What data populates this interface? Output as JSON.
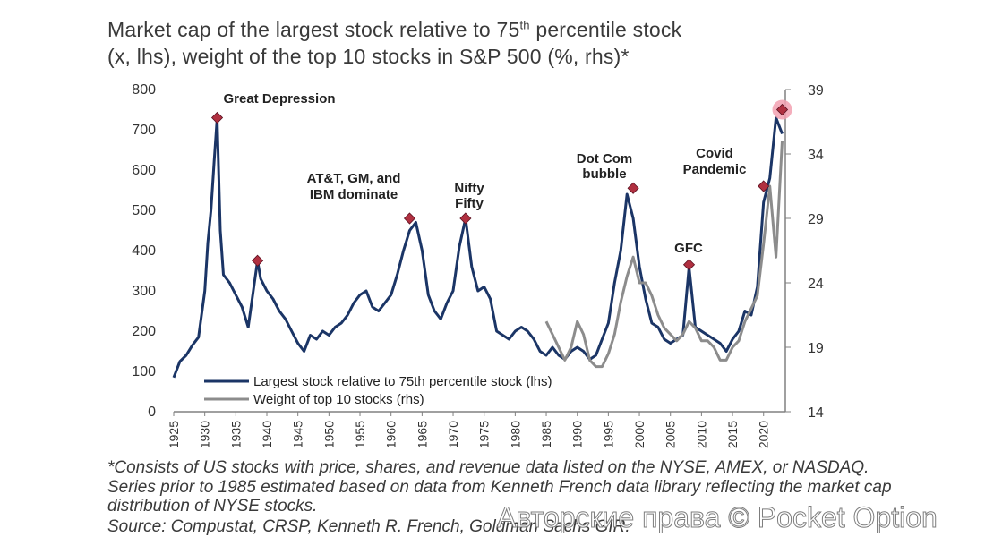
{
  "title": {
    "line1_pre": "Market cap of the largest stock relative to 75",
    "line1_sup": "th",
    "line1_post": " percentile stock",
    "line2": "(x, lhs), weight of the top 10 stocks in S&P 500 (%, rhs)*"
  },
  "footnote": "*Consists of US stocks with price, shares, and revenue data listed on the NYSE, AMEX, or NASDAQ. Series prior to 1985 estimated based on data from Kenneth French data library reflecting the market cap distribution of NYSE stocks.",
  "source": "Source: Compustat, CRSP, Kenneth R. French, Goldman Sachs GIR.",
  "watermark": "Авторские права © Pocket Option",
  "colors": {
    "lhs_series": "#1b3566",
    "rhs_series": "#8c8c8c",
    "marker": "#b03040",
    "highlight": "#f2a0b0",
    "axis": "#808080"
  },
  "chart_data": {
    "type": "line",
    "x_ticks": [
      1925,
      1930,
      1935,
      1940,
      1945,
      1950,
      1955,
      1960,
      1965,
      1970,
      1975,
      1980,
      1985,
      1990,
      1995,
      2000,
      2005,
      2010,
      2015,
      2020
    ],
    "y_left": {
      "ticks": [
        0,
        100,
        200,
        300,
        400,
        500,
        600,
        700,
        800
      ],
      "ylim": [
        0,
        800
      ]
    },
    "y_right": {
      "ticks": [
        14,
        19,
        24,
        29,
        34,
        39
      ],
      "ylim": [
        14,
        39
      ]
    },
    "xlim": [
      1925,
      2023.5
    ],
    "series": [
      {
        "name": "Largest stock relative to 75th percentile stock (lhs)",
        "axis": "left",
        "x": [
          1925,
          1926,
          1927,
          1928,
          1929,
          1930,
          1930.5,
          1931,
          1931.5,
          1932,
          1932.5,
          1933,
          1934,
          1935,
          1936,
          1937,
          1938,
          1938.5,
          1939,
          1940,
          1941,
          1942,
          1943,
          1944,
          1945,
          1946,
          1947,
          1948,
          1949,
          1950,
          1951,
          1952,
          1953,
          1954,
          1955,
          1956,
          1957,
          1958,
          1959,
          1960,
          1961,
          1962,
          1963,
          1964,
          1965,
          1966,
          1967,
          1968,
          1969,
          1970,
          1971,
          1972,
          1973,
          1974,
          1975,
          1976,
          1977,
          1978,
          1979,
          1980,
          1981,
          1982,
          1983,
          1984,
          1985,
          1986,
          1987,
          1988,
          1989,
          1990,
          1991,
          1992,
          1993,
          1994,
          1995,
          1996,
          1997,
          1998,
          1999,
          2000,
          2001,
          2002,
          2003,
          2004,
          2005,
          2006,
          2007,
          2008,
          2009,
          2010,
          2011,
          2012,
          2013,
          2014,
          2015,
          2016,
          2017,
          2018,
          2019,
          2020,
          2021,
          2022,
          2023
        ],
        "y": [
          85,
          125,
          140,
          165,
          185,
          300,
          420,
          500,
          620,
          730,
          450,
          340,
          320,
          290,
          260,
          210,
          320,
          375,
          330,
          300,
          280,
          250,
          230,
          200,
          170,
          150,
          190,
          180,
          200,
          190,
          210,
          220,
          240,
          270,
          290,
          300,
          260,
          250,
          270,
          290,
          340,
          400,
          450,
          470,
          400,
          290,
          250,
          230,
          270,
          300,
          410,
          480,
          360,
          300,
          310,
          280,
          200,
          190,
          180,
          200,
          210,
          200,
          180,
          150,
          140,
          160,
          140,
          130,
          150,
          160,
          150,
          130,
          140,
          180,
          220,
          320,
          400,
          540,
          480,
          360,
          280,
          220,
          210,
          180,
          170,
          180,
          190,
          360,
          210,
          200,
          190,
          180,
          170,
          150,
          180,
          200,
          250,
          240,
          310,
          520,
          580,
          730,
          690
        ]
      },
      {
        "name": "Weight of top 10 stocks (rhs)",
        "axis": "right",
        "x": [
          1985,
          1986,
          1987,
          1988,
          1989,
          1990,
          1991,
          1992,
          1993,
          1994,
          1995,
          1996,
          1997,
          1998,
          1999,
          2000,
          2001,
          2002,
          2003,
          2004,
          2005,
          2006,
          2007,
          2008,
          2009,
          2010,
          2011,
          2012,
          2013,
          2014,
          2015,
          2016,
          2017,
          2018,
          2019,
          2020,
          2021,
          2022,
          2023
        ],
        "y": [
          21,
          20,
          19,
          18,
          19,
          21,
          20,
          18,
          17.5,
          17.5,
          18.5,
          20,
          22.5,
          24.5,
          26,
          24,
          24,
          23,
          21.5,
          20.5,
          20,
          19.5,
          20,
          21,
          20.5,
          19.5,
          19.5,
          19,
          18,
          18,
          19,
          19.5,
          21,
          22,
          23,
          27,
          31.5,
          26,
          35
        ]
      }
    ],
    "annotations": [
      {
        "label": "Great Depression",
        "x": 1932,
        "y": 730
      },
      {
        "label": "AT&T, GM, and",
        "label2": "IBM dominate",
        "x": 1963,
        "y": 480
      },
      {
        "label": "Nifty",
        "label2": "Fifty",
        "x": 1972,
        "y": 480
      },
      {
        "label": "Dot Com",
        "label2": "bubble",
        "x": 1999,
        "y": 555
      },
      {
        "label": "GFC",
        "x": 2008,
        "y": 365
      },
      {
        "label": "Covid",
        "label2": "Pandemic",
        "x": 2020,
        "y": 560
      },
      {
        "label": "",
        "x": 1938.5,
        "y": 375
      },
      {
        "label": "",
        "x": 2023,
        "y": 750,
        "highlight": true
      }
    ],
    "legend": {
      "position": "bottom-left"
    }
  }
}
